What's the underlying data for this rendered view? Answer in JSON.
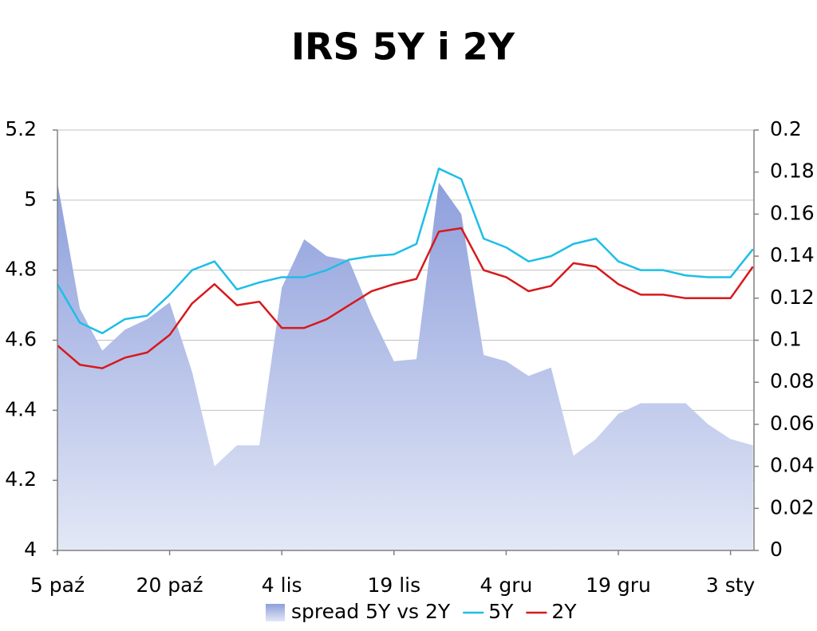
{
  "chart_data": {
    "type": "line",
    "title": "IRS 5Y i 2Y",
    "categories": [
      "5 paź",
      null,
      null,
      null,
      null,
      "20 paź",
      null,
      null,
      null,
      null,
      "4 lis",
      null,
      null,
      null,
      null,
      "19 lis",
      null,
      null,
      null,
      null,
      "4 gru",
      null,
      null,
      null,
      null,
      "19 gru",
      null,
      null,
      null,
      null,
      "3 sty",
      null
    ],
    "series": [
      {
        "name": "spread 5Y vs 2Y",
        "type": "area",
        "axis": "y2",
        "color": "#a9b7e4",
        "values": [
          0.175,
          0.115,
          0.095,
          0.105,
          0.11,
          0.118,
          0.085,
          0.04,
          0.05,
          0.05,
          0.125,
          0.148,
          0.14,
          0.138,
          0.112,
          0.09,
          0.091,
          0.175,
          0.16,
          0.093,
          0.09,
          0.083,
          0.087,
          0.045,
          0.053,
          0.065,
          0.07,
          0.07,
          0.07,
          0.06,
          0.053,
          0.05
        ]
      },
      {
        "name": "5Y",
        "color": "#1ebee6",
        "values": [
          4.76,
          4.65,
          4.62,
          4.66,
          4.67,
          4.73,
          4.8,
          4.825,
          4.745,
          4.765,
          4.78,
          4.78,
          4.8,
          4.83,
          4.84,
          4.845,
          4.875,
          5.09,
          5.06,
          4.89,
          4.865,
          4.825,
          4.84,
          4.875,
          4.89,
          4.825,
          4.8,
          4.8,
          4.785,
          4.78,
          4.78,
          4.86
        ]
      },
      {
        "name": "2Y",
        "color": "#d7191c",
        "values": [
          4.585,
          4.53,
          4.52,
          4.55,
          4.565,
          4.615,
          4.705,
          4.76,
          4.7,
          4.71,
          4.635,
          4.635,
          4.66,
          4.7,
          4.74,
          4.76,
          4.775,
          4.91,
          4.92,
          4.8,
          4.78,
          4.74,
          4.755,
          4.82,
          4.81,
          4.76,
          4.73,
          4.73,
          4.72,
          4.72,
          4.72,
          4.81
        ]
      }
    ],
    "ylim": [
      4,
      5.2
    ],
    "yticks": [
      4,
      4.2,
      4.4,
      4.6,
      4.8,
      5,
      5.2
    ],
    "y2lim": [
      0,
      0.2
    ],
    "y2ticks": [
      0,
      0.02,
      0.04,
      0.06,
      0.08,
      0.1,
      0.12,
      0.14,
      0.16,
      0.18,
      0.2
    ],
    "grid": true,
    "legend": "bottom"
  }
}
